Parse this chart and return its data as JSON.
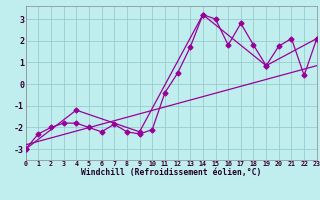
{
  "xlabel": "Windchill (Refroidissement éolien,°C)",
  "xlim": [
    0,
    23
  ],
  "ylim": [
    -3.5,
    3.6
  ],
  "yticks": [
    -3,
    -2,
    -1,
    0,
    1,
    2,
    3
  ],
  "xticks": [
    0,
    1,
    2,
    3,
    4,
    5,
    6,
    7,
    8,
    9,
    10,
    11,
    12,
    13,
    14,
    15,
    16,
    17,
    18,
    19,
    20,
    21,
    22,
    23
  ],
  "bg_color": "#c0eeee",
  "line_color": "#990099",
  "grid_color": "#99cccc",
  "line1_x": [
    0,
    1,
    2,
    3,
    4,
    5,
    6,
    7,
    8,
    9,
    10,
    11,
    12,
    13,
    14,
    15,
    16,
    17,
    18,
    19,
    20,
    21,
    22,
    23
  ],
  "line1_y": [
    -3.0,
    -2.3,
    -2.0,
    -1.8,
    -1.8,
    -2.0,
    -2.2,
    -1.85,
    -2.2,
    -2.3,
    -2.1,
    -0.4,
    0.5,
    1.7,
    3.2,
    3.0,
    1.8,
    2.8,
    1.8,
    0.85,
    1.75,
    2.1,
    0.4,
    2.1
  ],
  "line2_x": [
    0,
    4,
    9,
    14,
    19,
    23
  ],
  "line2_y": [
    -3.0,
    -1.2,
    -2.2,
    3.2,
    0.85,
    2.1
  ],
  "line3_x": [
    0,
    23
  ],
  "line3_y": [
    -2.8,
    0.85
  ],
  "marker_size": 2.5,
  "line_width": 0.9
}
